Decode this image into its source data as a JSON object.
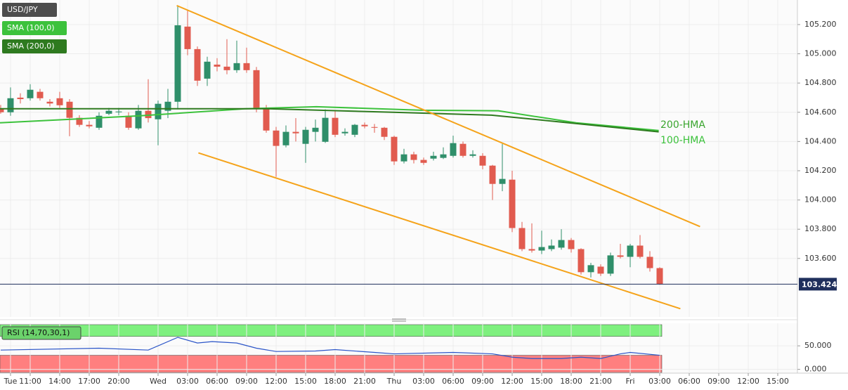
{
  "chart_data": [
    {
      "type": "candlestick",
      "title": "USD/JPY",
      "x": [
        -16,
        -15,
        -14,
        -13,
        -12,
        -11,
        -10,
        -9,
        -8,
        -7,
        -6,
        -5,
        -4,
        -3,
        -2,
        -1,
        0,
        1,
        2,
        3,
        4,
        5,
        6,
        7,
        8,
        9,
        10,
        11,
        12,
        13,
        14,
        15,
        16,
        17,
        18,
        19,
        20,
        21,
        22,
        23,
        24,
        25,
        26,
        27,
        28,
        29,
        30,
        31,
        32,
        33,
        34,
        35,
        36,
        37,
        38,
        39,
        40,
        41,
        42,
        43,
        44,
        45,
        46,
        47,
        48,
        49,
        50,
        51
      ],
      "open": [
        104.624,
        104.6,
        104.7,
        104.696,
        104.74,
        104.672,
        104.696,
        104.672,
        104.562,
        104.514,
        104.494,
        104.59,
        104.6,
        104.576,
        104.49,
        104.61,
        104.552,
        104.61,
        104.672,
        105.186,
        105.032,
        104.83,
        104.926,
        104.912,
        104.888,
        104.936,
        104.888,
        104.624,
        104.475,
        104.374,
        104.466,
        104.384,
        104.466,
        104.398,
        104.562,
        104.456,
        104.446,
        104.514,
        104.499,
        104.494,
        104.432,
        104.264,
        104.312,
        104.274,
        104.283,
        104.288,
        104.302,
        104.384,
        104.302,
        104.302,
        104.235,
        104.11,
        104.139,
        103.808,
        103.664,
        103.654,
        103.664,
        103.674,
        103.726,
        103.664,
        103.506,
        103.544,
        103.496,
        103.621,
        103.611,
        103.688,
        103.611,
        103.534
      ],
      "high": [
        104.65,
        104.77,
        104.73,
        104.792,
        104.76,
        104.69,
        104.74,
        104.69,
        104.58,
        104.54,
        104.6,
        104.63,
        104.63,
        104.6,
        104.65,
        104.826,
        104.68,
        104.76,
        105.33,
        105.296,
        105.05,
        104.98,
        104.97,
        105.1,
        105.09,
        105.042,
        104.91,
        104.65,
        104.5,
        104.51,
        104.56,
        104.5,
        104.55,
        104.62,
        104.61,
        104.49,
        104.52,
        104.53,
        104.52,
        104.5,
        104.44,
        104.35,
        104.33,
        104.29,
        104.33,
        104.36,
        104.44,
        104.4,
        104.34,
        104.32,
        104.24,
        104.384,
        104.2,
        103.85,
        103.84,
        103.79,
        103.73,
        103.8,
        103.74,
        103.67,
        103.57,
        103.56,
        103.64,
        103.7,
        103.7,
        103.76,
        103.65,
        103.54
      ],
      "low": [
        104.59,
        104.576,
        104.66,
        104.68,
        104.68,
        104.64,
        104.63,
        104.436,
        104.5,
        104.49,
        104.48,
        104.58,
        104.58,
        104.48,
        104.48,
        104.53,
        104.374,
        104.56,
        104.62,
        104.99,
        104.78,
        104.78,
        104.88,
        104.86,
        104.87,
        104.87,
        104.6,
        104.46,
        104.158,
        104.36,
        104.4,
        104.254,
        104.4,
        104.39,
        104.43,
        104.44,
        104.43,
        104.49,
        104.46,
        104.41,
        104.24,
        104.25,
        104.25,
        104.24,
        104.27,
        104.28,
        104.29,
        104.29,
        104.29,
        104.21,
        104.0,
        104.06,
        103.78,
        103.65,
        103.64,
        103.63,
        103.65,
        103.66,
        103.64,
        103.49,
        103.47,
        103.48,
        103.48,
        103.6,
        103.54,
        103.6,
        103.51,
        103.42
      ],
      "close": [
        104.6,
        104.696,
        104.69,
        104.754,
        104.696,
        104.66,
        104.648,
        104.562,
        104.514,
        104.504,
        104.576,
        104.61,
        104.605,
        104.494,
        104.61,
        104.56,
        104.658,
        104.672,
        105.195,
        105.032,
        104.816,
        104.946,
        104.912,
        104.888,
        104.936,
        104.888,
        104.624,
        104.475,
        104.37,
        104.466,
        104.456,
        104.48,
        104.494,
        104.562,
        104.446,
        104.466,
        104.514,
        104.504,
        104.494,
        104.432,
        104.264,
        104.312,
        104.274,
        104.254,
        104.302,
        104.312,
        104.389,
        104.302,
        104.312,
        104.235,
        104.11,
        104.144,
        103.808,
        103.664,
        103.654,
        103.678,
        103.688,
        103.726,
        103.664,
        103.506,
        103.554,
        103.496,
        103.621,
        103.611,
        103.688,
        103.611,
        103.534,
        103.424
      ],
      "up_color": "#2f8f6a",
      "down_color": "#e15b4f",
      "series": [
        {
          "name": "SMA (100,0)",
          "color": "#3cc23c",
          "x": [
            -16.07,
            -1.8,
            8.9,
            16.1,
            26.8,
            34.6,
            42.5,
            50.9
          ],
          "values": [
            104.528,
            104.576,
            104.624,
            104.638,
            104.614,
            104.61,
            104.528,
            104.475
          ]
        },
        {
          "name": "SMA (200,0)",
          "color": "#2e7a1f",
          "x": [
            -16.07,
            -1.8,
            11.1,
            23.9,
            33.9,
            38.2,
            50.9
          ],
          "values": [
            104.624,
            104.624,
            104.624,
            104.6,
            104.58,
            104.552,
            104.466
          ]
        }
      ],
      "trendlines": [
        {
          "color": "#f5a31a",
          "x": [
            1.9,
            55.1
          ],
          "values": [
            105.33,
            103.818
          ]
        },
        {
          "color": "#f5a31a",
          "x": [
            4.1,
            53.1
          ],
          "values": [
            104.322,
            103.256
          ]
        }
      ],
      "annotations": [
        {
          "text": "200-HMA",
          "color": "#3aa52e"
        },
        {
          "text": "100-HMA",
          "color": "#3cc23c"
        }
      ],
      "xlim": [
        -16.07,
        65
      ],
      "ylim": [
        103.2,
        105.368
      ],
      "yticks": [
        {
          "value": 103.6,
          "label": "103.600"
        },
        {
          "value": 103.8,
          "label": "103.800"
        },
        {
          "value": 104.0,
          "label": "104.000"
        },
        {
          "value": 104.2,
          "label": "104.200"
        },
        {
          "value": 104.4,
          "label": "104.400"
        },
        {
          "value": 104.6,
          "label": "104.600"
        },
        {
          "value": 104.8,
          "label": "104.800"
        },
        {
          "value": 105.0,
          "label": "105.000"
        },
        {
          "value": 105.2,
          "label": "105.200"
        }
      ],
      "xticks": [
        {
          "value": -15,
          "label": "Tue"
        },
        {
          "value": -13,
          "label": "11:00"
        },
        {
          "value": -10,
          "label": "14:00"
        },
        {
          "value": -7,
          "label": "17:00"
        },
        {
          "value": -4,
          "label": "20:00"
        },
        {
          "value": 0,
          "label": "Wed"
        },
        {
          "value": 3,
          "label": "03:00"
        },
        {
          "value": 6,
          "label": "06:00"
        },
        {
          "value": 9,
          "label": "09:00"
        },
        {
          "value": 12,
          "label": "12:00"
        },
        {
          "value": 15,
          "label": "15:00"
        },
        {
          "value": 18,
          "label": "18:00"
        },
        {
          "value": 21,
          "label": "21:00"
        },
        {
          "value": 24,
          "label": "Thu"
        },
        {
          "value": 27,
          "label": "03:00"
        },
        {
          "value": 30,
          "label": "06:00"
        },
        {
          "value": 33,
          "label": "09:00"
        },
        {
          "value": 36,
          "label": "12:00"
        },
        {
          "value": 39,
          "label": "15:00"
        },
        {
          "value": 42,
          "label": "18:00"
        },
        {
          "value": 45,
          "label": "21:00"
        },
        {
          "value": 48,
          "label": "Fri"
        },
        {
          "value": 51,
          "label": "03:00"
        },
        {
          "value": 54,
          "label": "06:00"
        },
        {
          "value": 57,
          "label": "09:00"
        },
        {
          "value": 60,
          "label": "12:00"
        },
        {
          "value": 63,
          "label": "15:00"
        }
      ],
      "grid": true
    },
    {
      "type": "line",
      "title": "RSI (14,70,30,1)",
      "series": [
        {
          "color": "#2b55c8",
          "x": [
            -16,
            -6,
            -1,
            2,
            4,
            5.5,
            8,
            10,
            12,
            16,
            18,
            22,
            24,
            30,
            34,
            36,
            38,
            41,
            43,
            45,
            47,
            48,
            51
          ],
          "values": [
            41,
            45,
            41,
            68,
            56,
            59,
            56,
            45,
            38,
            39,
            42,
            36,
            33,
            36,
            33,
            26,
            23,
            23,
            26,
            23,
            33,
            36,
            30
          ]
        }
      ],
      "levels": [
        {
          "value": 70,
          "color": "#7ef07e"
        },
        {
          "value": 30,
          "color": "#ff7f7f"
        }
      ],
      "ylim": [
        -8,
        98
      ],
      "yticks": [
        {
          "value": 0,
          "label": "0.000"
        },
        {
          "value": 50,
          "label": "50.000"
        }
      ]
    }
  ]
}
